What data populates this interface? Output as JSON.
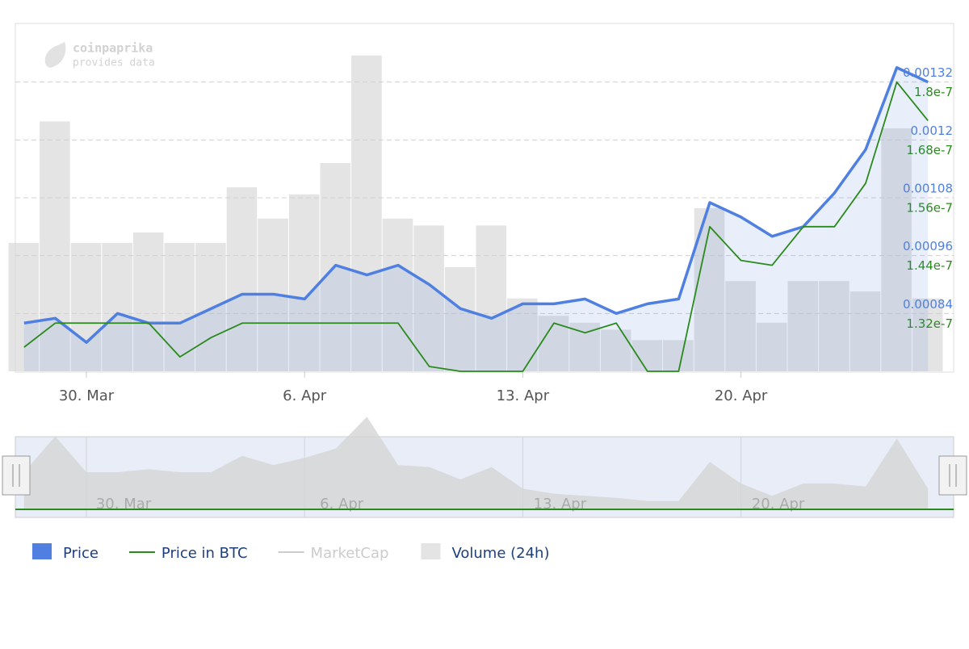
{
  "chart_data": {
    "type": "line",
    "credit": [
      "coinpaprika",
      "provides data"
    ],
    "categories": [
      "28. Mar",
      "29. Mar",
      "30. Mar",
      "31. Mar",
      "1. Apr",
      "2. Apr",
      "3. Apr",
      "4. Apr",
      "5. Apr",
      "6. Apr",
      "7. Apr",
      "8. Apr",
      "9. Apr",
      "10. Apr",
      "11. Apr",
      "12. Apr",
      "13. Apr",
      "14. Apr",
      "15. Apr",
      "16. Apr",
      "17. Apr",
      "18. Apr",
      "19. Apr",
      "20. Apr",
      "21. Apr",
      "22. Apr",
      "23. Apr",
      "24. Apr",
      "25. Apr",
      "26. Apr"
    ],
    "xticks": [
      "30. Mar",
      "6. Apr",
      "13. Apr",
      "20. Apr"
    ],
    "ylim": [
      0.00072,
      0.00144
    ],
    "yticks": [
      0.00084,
      0.00096,
      0.00108,
      0.0012,
      0.00132
    ],
    "y2lim": [
      1.2e-07,
      1.92e-07
    ],
    "y2ticks": [
      1.32e-07,
      1.44e-07,
      1.56e-07,
      1.68e-07,
      1.8e-07
    ],
    "y3lim": [
      0,
      100
    ],
    "grid": true,
    "series": [
      {
        "name": "Price",
        "color": "#4f80e1",
        "type": "area",
        "values": [
          0.00082,
          0.00083,
          0.00078,
          0.00084,
          0.00082,
          0.00082,
          0.00085,
          0.00088,
          0.00088,
          0.00087,
          0.00094,
          0.00092,
          0.00094,
          0.0009,
          0.00085,
          0.00083,
          0.00086,
          0.00086,
          0.00087,
          0.00084,
          0.00086,
          0.00087,
          0.00107,
          0.00104,
          0.001,
          0.00102,
          0.00109,
          0.00118,
          0.00135,
          0.00132
        ]
      },
      {
        "name": "Price in BTC",
        "color": "#2a8a1c",
        "type": "line",
        "axis": "y2",
        "values": [
          1.25e-07,
          1.3e-07,
          1.3e-07,
          1.3e-07,
          1.3e-07,
          1.23e-07,
          1.27e-07,
          1.3e-07,
          1.3e-07,
          1.3e-07,
          1.3e-07,
          1.3e-07,
          1.3e-07,
          1.21e-07,
          1.2e-07,
          1.2e-07,
          1.2e-07,
          1.3e-07,
          1.28e-07,
          1.3e-07,
          1.2e-07,
          1.2e-07,
          1.5e-07,
          1.43e-07,
          1.42e-07,
          1.5e-07,
          1.5e-07,
          1.59e-07,
          1.8e-07,
          1.72e-07
        ]
      },
      {
        "name": "MarketCap",
        "color": "#cccccc",
        "type": "line",
        "visible": false,
        "values": [
          null,
          null,
          null,
          null,
          null,
          null,
          null,
          null,
          null,
          null,
          null,
          null,
          null,
          null,
          null,
          null,
          null,
          null,
          null,
          null,
          null,
          null,
          null,
          null,
          null,
          null,
          null,
          null,
          null,
          null
        ]
      },
      {
        "name": "Volume (24h)",
        "color": "#d9d9d9",
        "type": "column",
        "axis": "y3",
        "values": [
          37,
          72,
          37,
          37,
          40,
          37,
          37,
          53,
          44,
          51,
          60,
          91,
          44,
          42,
          30,
          42,
          21,
          16,
          14,
          12,
          9,
          9,
          47,
          26,
          14,
          26,
          26,
          23,
          70,
          21
        ]
      }
    ]
  }
}
